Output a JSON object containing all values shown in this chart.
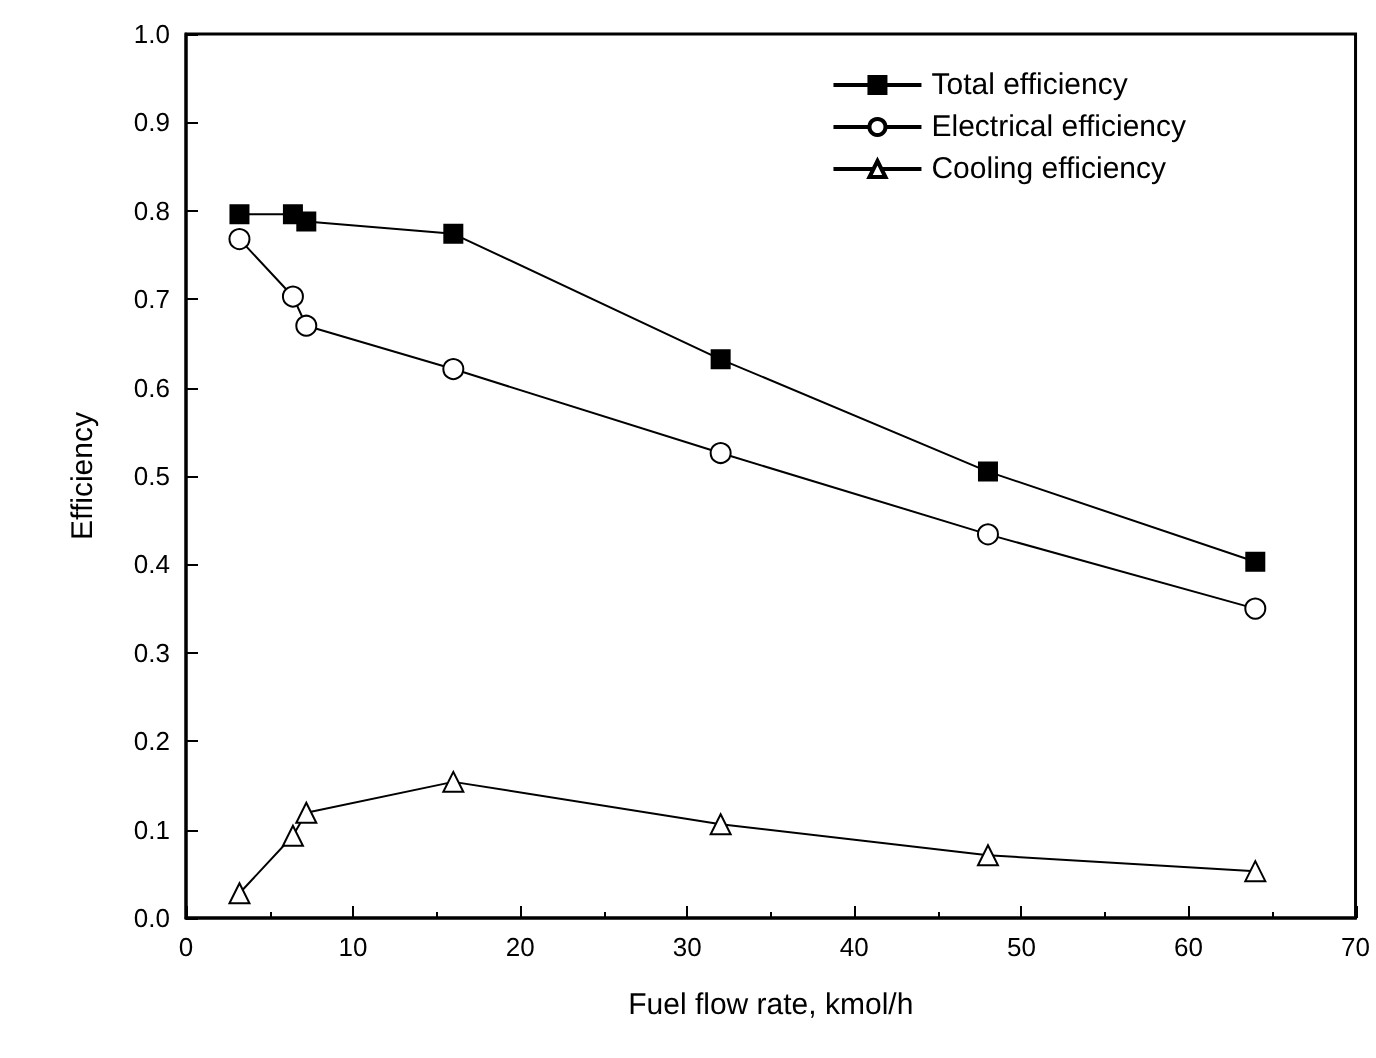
{
  "chart_data": {
    "type": "line",
    "xlabel": "Fuel flow rate, kmol/h",
    "ylabel": "Efficiency",
    "xlim": [
      0,
      70
    ],
    "xticks": [
      0,
      10,
      20,
      30,
      40,
      50,
      60,
      70
    ],
    "ylim": [
      0,
      1
    ],
    "yticks": [
      {
        "value": 0,
        "label": "0.0"
      },
      0.1,
      0.2,
      0.3,
      0.4,
      0.5,
      0.6,
      0.7,
      0.8,
      0.9,
      {
        "value": 1,
        "label": "1.0"
      }
    ],
    "x": [
      3.2,
      6.4,
      7.2,
      16,
      32,
      48,
      64
    ],
    "series": [
      {
        "name": "Total efficiency",
        "color": "#000000",
        "marker": "square",
        "values": [
          0.796,
          0.796,
          0.788,
          0.774,
          0.632,
          0.505,
          0.403
        ]
      },
      {
        "name": "Electrical efficiency",
        "color": "#000000",
        "marker": "circle",
        "values": [
          0.768,
          0.703,
          0.67,
          0.621,
          0.526,
          0.434,
          0.35
        ]
      },
      {
        "name": "Cooling efficiency",
        "color": "#000000",
        "marker": "triangle",
        "values": [
          0.028,
          0.093,
          0.119,
          0.154,
          0.106,
          0.071,
          0.053
        ]
      }
    ],
    "legend": "top right",
    "grid": false,
    "line_style": "solid"
  }
}
